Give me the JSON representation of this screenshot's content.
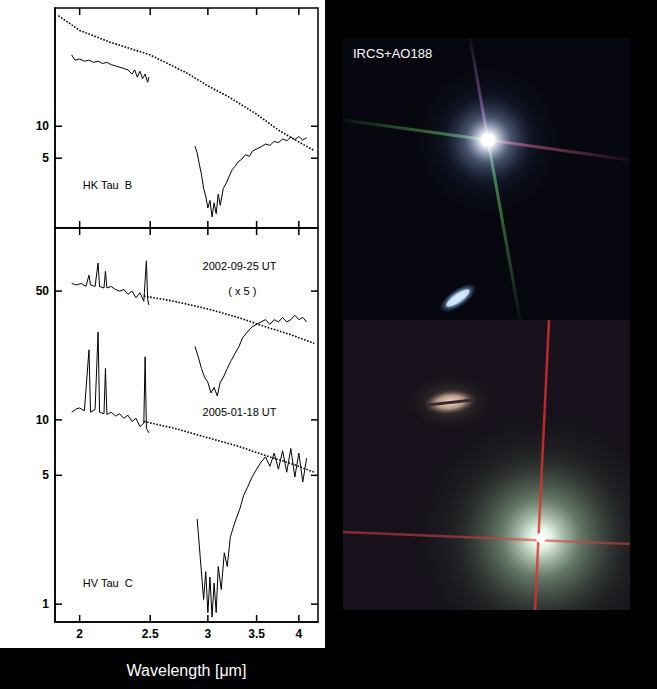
{
  "chart_data": [
    {
      "type": "line",
      "log": true,
      "xlim": [
        1.85,
        4.25
      ],
      "ylim": [
        1.1,
        130
      ],
      "xticks": [
        2,
        2.5,
        3,
        3.5,
        4
      ],
      "yticks": [
        5,
        10
      ],
      "tick_labels": "y",
      "annotations": [
        {
          "text": "HK Tau  B",
          "x": 2.02,
          "y": 2.8
        }
      ],
      "series": [
        {
          "color": "#000000",
          "line_style": "solid",
          "x": [
            1.95,
            1.97,
            2.0,
            2.03,
            2.06,
            2.09,
            2.12,
            2.15,
            2.18,
            2.21,
            2.24,
            2.27,
            2.3,
            2.33,
            2.36,
            2.38,
            2.4,
            2.42,
            2.44,
            2.46,
            2.48,
            2.49,
            2.7,
            2.88,
            2.9,
            2.92,
            2.94,
            2.96,
            2.98,
            3.0,
            3.02,
            3.04,
            3.06,
            3.08,
            3.1,
            3.12,
            3.15,
            3.18,
            3.21,
            3.24,
            3.27,
            3.3,
            3.34,
            3.38,
            3.42,
            3.46,
            3.5,
            3.55,
            3.6,
            3.65,
            3.7,
            3.75,
            3.8,
            3.85,
            3.9,
            3.95,
            4.0,
            4.05,
            4.1
          ],
          "values": [
            47,
            42,
            43,
            41,
            42,
            40,
            41,
            39,
            40,
            38,
            37,
            36,
            35,
            34,
            31,
            34,
            29,
            33,
            28,
            31,
            26,
            29,
            null,
            6.5,
            5.6,
            4.4,
            3.5,
            2.6,
            2.2,
            1.7,
            2.0,
            1.4,
            1.9,
            1.5,
            2.3,
            1.8,
            2.6,
            2.9,
            3.4,
            3.9,
            4.2,
            4.6,
            4.9,
            5.4,
            5.2,
            5.9,
            6.1,
            6.4,
            6.8,
            6.6,
            7.2,
            7.0,
            7.6,
            7.3,
            7.9,
            7.5,
            8.0,
            7.4,
            7.8
          ]
        },
        {
          "color": "#000000",
          "line_style": "dotted",
          "x": [
            1.87,
            2.0,
            2.2,
            2.5,
            2.8,
            3.0,
            3.2,
            3.5,
            3.75,
            4.0,
            4.2
          ],
          "values": [
            110,
            80,
            62,
            47,
            32,
            24,
            19,
            13,
            9.2,
            7.1,
            5.9
          ]
        }
      ]
    },
    {
      "type": "line",
      "log": true,
      "xlim": [
        1.85,
        4.25
      ],
      "ylim": [
        0.8,
        110
      ],
      "xticks": [
        2,
        2.5,
        3,
        3.5,
        4
      ],
      "yticks": [
        1,
        5,
        10,
        50
      ],
      "xlabel": "Wavelength [μm]",
      "annotations": [
        {
          "text": "2002-09-25 UT",
          "x": 2.95,
          "y": 68
        },
        {
          "text": "( x 5 )",
          "x": 3.2,
          "y": 50
        },
        {
          "text": "2005-01-18 UT",
          "x": 2.95,
          "y": 11
        },
        {
          "text": "HV Tau  C",
          "x": 2.02,
          "y": 1.3
        }
      ],
      "series": [
        {
          "color": "#000000",
          "line_style": "solid",
          "x": [
            1.95,
            1.98,
            2.01,
            2.04,
            2.06,
            2.07,
            2.1,
            2.12,
            2.13,
            2.16,
            2.17,
            2.18,
            2.21,
            2.24,
            2.27,
            2.3,
            2.33,
            2.36,
            2.39,
            2.42,
            2.45,
            2.47,
            2.48,
            2.49,
            2.7,
            2.88,
            2.91,
            2.94,
            2.97,
            3.0,
            3.03,
            3.06,
            3.09,
            3.12,
            3.15,
            3.19,
            3.23,
            3.27,
            3.31,
            3.35,
            3.4,
            3.45,
            3.5,
            3.55,
            3.6,
            3.65,
            3.7,
            3.75,
            3.8,
            3.85,
            3.9,
            3.95,
            4.0,
            4.05,
            4.1
          ],
          "values": [
            55,
            54,
            55,
            53,
            61,
            54,
            53,
            71,
            53,
            52,
            64,
            52,
            53,
            51,
            50,
            51,
            48,
            50,
            46,
            49,
            44,
            73,
            45,
            42,
            null,
            25,
            22,
            19,
            17,
            16,
            14,
            15,
            13.5,
            16,
            17,
            19,
            21,
            23,
            25,
            28,
            30,
            32,
            33,
            34,
            35,
            33,
            35,
            34,
            36,
            34,
            35,
            37,
            35,
            36,
            34
          ]
        },
        {
          "color": "#000000",
          "line_style": "dotted",
          "x": [
            2.45,
            2.7,
            3.0,
            3.3,
            3.6,
            3.9,
            4.2
          ],
          "values": [
            47,
            44,
            40,
            36,
            32,
            29,
            26
          ]
        },
        {
          "color": "#000000",
          "line_style": "solid",
          "x": [
            1.95,
            1.98,
            2.0,
            2.03,
            2.06,
            2.07,
            2.1,
            2.12,
            2.13,
            2.16,
            2.17,
            2.18,
            2.21,
            2.24,
            2.27,
            2.3,
            2.33,
            2.36,
            2.39,
            2.42,
            2.45,
            2.46,
            2.47,
            2.49,
            2.7,
            2.9,
            2.93,
            2.96,
            2.98,
            3.0,
            3.02,
            3.04,
            3.06,
            3.08,
            3.1,
            3.13,
            3.16,
            3.19,
            3.22,
            3.25,
            3.28,
            3.32,
            3.36,
            3.4,
            3.45,
            3.5,
            3.55,
            3.6,
            3.65,
            3.7,
            3.75,
            3.8,
            3.85,
            3.9,
            3.95,
            4.0,
            4.05,
            4.1
          ],
          "values": [
            11,
            11.5,
            11.6,
            11.2,
            24,
            11,
            11.4,
            30,
            11,
            10.8,
            19,
            10.7,
            11,
            10.5,
            10.8,
            10.2,
            10.6,
            9.8,
            10.2,
            9.2,
            9.6,
            22,
            9,
            8.5,
            null,
            2.9,
            1.75,
            1.06,
            1.5,
            0.9,
            1.4,
            0.85,
            1.3,
            0.9,
            1.6,
            1.2,
            1.9,
            1.6,
            2.3,
            2.6,
            2.9,
            3.3,
            3.9,
            4.3,
            4.9,
            5.4,
            5.9,
            6.3,
            5.6,
            6.6,
            5.4,
            6.8,
            5.2,
            7.0,
            4.9,
            6.6,
            4.6,
            6.2
          ]
        },
        {
          "color": "#000000",
          "line_style": "dotted",
          "x": [
            2.45,
            2.7,
            3.0,
            3.3,
            3.6,
            3.9,
            4.2
          ],
          "values": [
            9.8,
            9.0,
            8.0,
            7.2,
            6.4,
            5.8,
            5.2
          ]
        }
      ]
    }
  ],
  "images": [
    {
      "label": "IRCS+AO188"
    }
  ]
}
